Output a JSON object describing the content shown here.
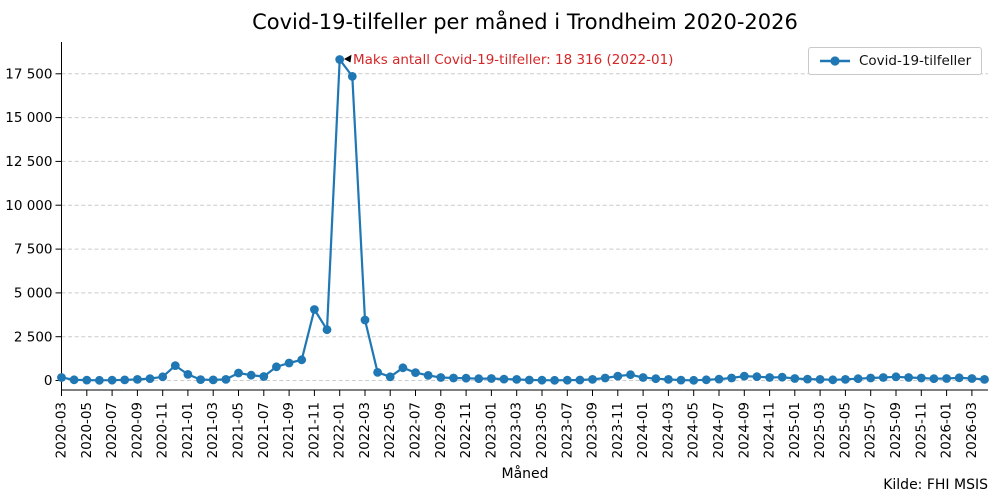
{
  "title": "Covid-19-tilfeller per måned i Trondheim 2020-2026",
  "xlabel": "Måned",
  "source": "Kilde: FHI MSIS",
  "legend": {
    "label": "Covid-19-tilfeller"
  },
  "annotation": {
    "text": "Maks antall Covid-19-tilfeller: 18 316 (2022-01)"
  },
  "colors": {
    "line": "#1f77b4",
    "annotation": "#d62728",
    "grid": "#cccccc",
    "axis": "#000000",
    "background": "#ffffff"
  },
  "chart_data": {
    "type": "line",
    "title": "Covid-19-tilfeller per måned i Trondheim 2020-2026",
    "xlabel": "Måned",
    "ylabel": "",
    "legend_entries": [
      "Covid-19-tilfeller"
    ],
    "legend_position": "upper right",
    "grid": "horizontal dashed",
    "marker": "circle",
    "line_color": "#1f77b4",
    "x_tick_every": 2,
    "y_ticks": [
      0,
      2500,
      5000,
      7500,
      10000,
      12500,
      15000,
      17500
    ],
    "y_ticklabels": [
      "0",
      "2 500",
      "5 000",
      "7 500",
      "10 000",
      "12 500",
      "15 000",
      "17 500"
    ],
    "ylim": [
      -900,
      19350
    ],
    "annotation": {
      "text": "Maks antall Covid-19-tilfeller: 18 316 (2022-01)",
      "x": "2022-01",
      "y": 18316,
      "color": "#d62728"
    },
    "source_note": "Kilde: FHI MSIS",
    "x": [
      "2020-03",
      "2020-04",
      "2020-05",
      "2020-06",
      "2020-07",
      "2020-08",
      "2020-09",
      "2020-10",
      "2020-11",
      "2020-12",
      "2021-01",
      "2021-02",
      "2021-03",
      "2021-04",
      "2021-05",
      "2021-06",
      "2021-07",
      "2021-08",
      "2021-09",
      "2021-10",
      "2021-11",
      "2021-12",
      "2022-01",
      "2022-02",
      "2022-03",
      "2022-04",
      "2022-05",
      "2022-06",
      "2022-07",
      "2022-08",
      "2022-09",
      "2022-10",
      "2022-11",
      "2022-12",
      "2023-01",
      "2023-02",
      "2023-03",
      "2023-04",
      "2023-05",
      "2023-06",
      "2023-07",
      "2023-08",
      "2023-09",
      "2023-10",
      "2023-11",
      "2023-12",
      "2024-01",
      "2024-02",
      "2024-03",
      "2024-04",
      "2024-05",
      "2024-06",
      "2024-07",
      "2024-08",
      "2024-09",
      "2024-10",
      "2024-11",
      "2024-12",
      "2025-01",
      "2025-02",
      "2025-03",
      "2025-04",
      "2025-05",
      "2025-06",
      "2025-07",
      "2025-08",
      "2025-09",
      "2025-10",
      "2025-11",
      "2025-12",
      "2026-01",
      "2026-02",
      "2026-03",
      "2026-04"
    ],
    "series": [
      {
        "name": "Covid-19-tilfeller",
        "values": [
          170,
          40,
          20,
          10,
          15,
          35,
          60,
          110,
          210,
          850,
          350,
          50,
          35,
          60,
          430,
          300,
          230,
          780,
          1000,
          1180,
          4050,
          2900,
          18316,
          17350,
          3450,
          460,
          210,
          725,
          450,
          290,
          170,
          140,
          130,
          100,
          115,
          80,
          60,
          30,
          15,
          10,
          15,
          30,
          60,
          140,
          250,
          330,
          170,
          100,
          60,
          25,
          10,
          40,
          80,
          140,
          250,
          215,
          170,
          190,
          115,
          80,
          60,
          40,
          60,
          100,
          140,
          170,
          210,
          170,
          140,
          100,
          115,
          155,
          115,
          60
        ]
      }
    ]
  }
}
